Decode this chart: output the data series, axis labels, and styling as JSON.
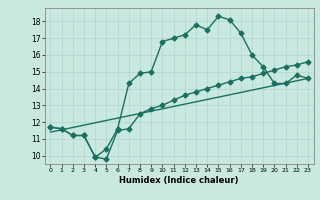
{
  "title": "",
  "xlabel": "Humidex (Indice chaleur)",
  "bg_color": "#c8e8e0",
  "line_color": "#1a7060",
  "grid_color": "#b0d4cc",
  "xlim": [
    -0.5,
    23.5
  ],
  "ylim": [
    9.5,
    18.8
  ],
  "yticks": [
    10,
    11,
    12,
    13,
    14,
    15,
    16,
    17,
    18
  ],
  "xticks": [
    0,
    1,
    2,
    3,
    4,
    5,
    6,
    7,
    8,
    9,
    10,
    11,
    12,
    13,
    14,
    15,
    16,
    17,
    18,
    19,
    20,
    21,
    22,
    23
  ],
  "line1_x": [
    0,
    1,
    2,
    3,
    4,
    5,
    6,
    7,
    8,
    9,
    10,
    11,
    12,
    13,
    14,
    15,
    16,
    17,
    18,
    19,
    20,
    21,
    22,
    23
  ],
  "line1_y": [
    11.7,
    11.6,
    11.2,
    11.2,
    9.9,
    10.4,
    11.6,
    14.3,
    14.9,
    15.0,
    16.8,
    17.0,
    17.2,
    17.8,
    17.5,
    18.3,
    18.1,
    17.3,
    16.0,
    15.3,
    14.3,
    14.3,
    14.8,
    14.6
  ],
  "line2_x": [
    0,
    1,
    2,
    3,
    4,
    5,
    6,
    7,
    8,
    9,
    10,
    11,
    12,
    13,
    14,
    15,
    16,
    17,
    18,
    19,
    20,
    21,
    22,
    23
  ],
  "line2_y": [
    11.7,
    11.6,
    11.2,
    11.2,
    9.9,
    9.8,
    11.5,
    11.6,
    12.5,
    12.8,
    13.0,
    13.3,
    13.6,
    13.8,
    14.0,
    14.2,
    14.4,
    14.6,
    14.7,
    14.9,
    15.1,
    15.3,
    15.4,
    15.6
  ],
  "line3_x": [
    0,
    23
  ],
  "line3_y": [
    11.4,
    14.6
  ],
  "marker": "D",
  "markersize": 2.5,
  "linewidth": 1.0
}
